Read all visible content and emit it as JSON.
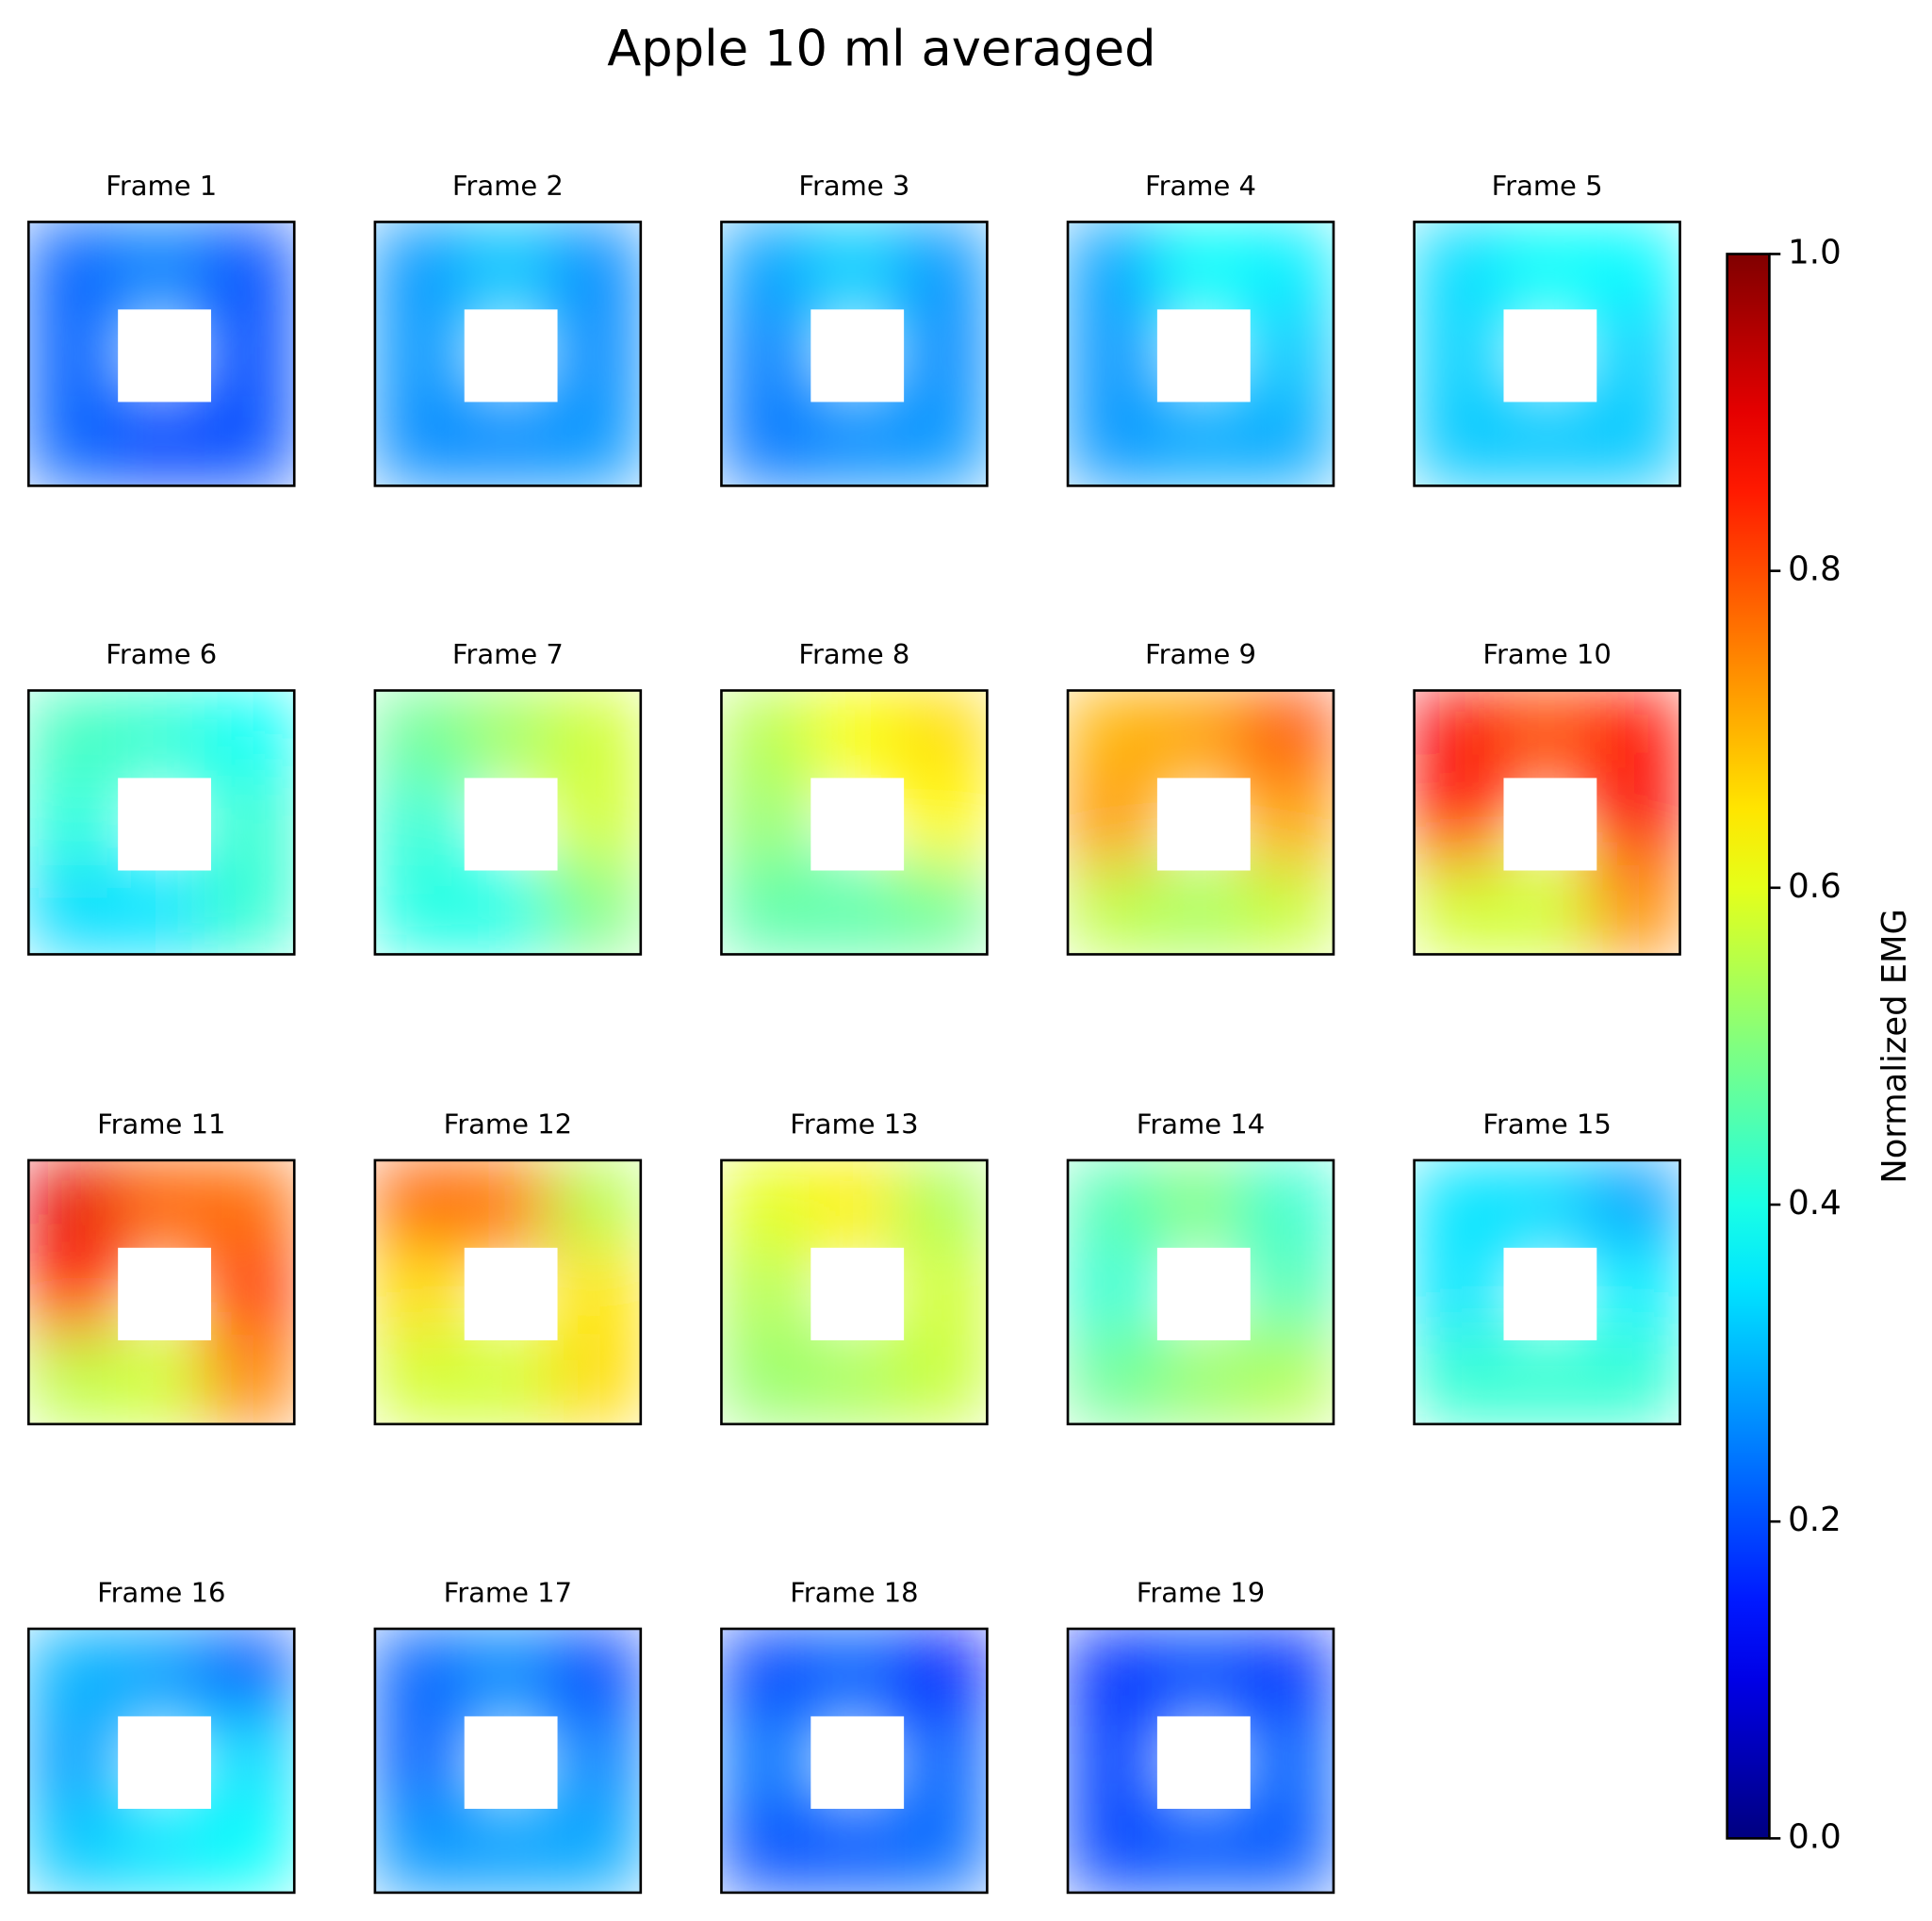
{
  "chart_data": {
    "type": "heatmap",
    "title": "Apple 10 ml averaged",
    "colormap": "jet",
    "clim": [
      0,
      1
    ],
    "cticks": [
      {
        "value": 0,
        "label": "0.0"
      },
      0.2,
      0.4,
      0.6,
      0.8,
      {
        "value": 1,
        "label": "1.0"
      }
    ],
    "colorbar_label": "Normalized EMG",
    "panels": [
      {
        "title": "Frame 1",
        "values": [
          [
            0.22,
            0.25,
            0.2
          ],
          [
            0.22,
            null,
            0.2
          ],
          [
            0.22,
            0.19,
            0.2
          ]
        ]
      },
      {
        "title": "Frame 2",
        "values": [
          [
            0.27,
            0.32,
            0.26
          ],
          [
            0.27,
            null,
            0.26
          ],
          [
            0.26,
            0.26,
            0.27
          ]
        ]
      },
      {
        "title": "Frame 3",
        "values": [
          [
            0.28,
            0.33,
            0.27
          ],
          [
            0.25,
            null,
            0.26
          ],
          [
            0.24,
            0.26,
            0.27
          ]
        ]
      },
      {
        "title": "Frame 4",
        "values": [
          [
            0.28,
            0.38,
            0.36
          ],
          [
            0.27,
            null,
            0.32
          ],
          [
            0.27,
            0.29,
            0.29
          ]
        ]
      },
      {
        "title": "Frame 5",
        "values": [
          [
            0.34,
            0.38,
            0.37
          ],
          [
            0.33,
            null,
            0.33
          ],
          [
            0.32,
            0.32,
            0.32
          ]
        ]
      },
      {
        "title": "Frame 6",
        "values": [
          [
            0.44,
            0.42,
            0.38
          ],
          [
            0.41,
            null,
            0.42
          ],
          [
            0.34,
            0.35,
            0.42
          ]
        ]
      },
      {
        "title": "Frame 7",
        "values": [
          [
            0.48,
            0.53,
            0.58
          ],
          [
            0.42,
            null,
            0.58
          ],
          [
            0.4,
            0.4,
            0.5
          ]
        ]
      },
      {
        "title": "Frame 8",
        "values": [
          [
            0.55,
            0.62,
            0.66
          ],
          [
            0.52,
            null,
            0.63
          ],
          [
            0.46,
            0.46,
            0.48
          ]
        ]
      },
      {
        "title": "Frame 9",
        "values": [
          [
            0.7,
            0.72,
            0.8
          ],
          [
            0.73,
            null,
            0.72
          ],
          [
            0.56,
            0.54,
            0.57
          ]
        ]
      },
      {
        "title": "Frame 10",
        "values": [
          [
            0.88,
            0.8,
            0.86
          ],
          [
            0.85,
            null,
            0.88
          ],
          [
            0.58,
            0.58,
            0.74
          ]
        ]
      },
      {
        "title": "Frame 11",
        "values": [
          [
            0.9,
            0.78,
            0.77
          ],
          [
            0.84,
            null,
            0.82
          ],
          [
            0.56,
            0.58,
            0.75
          ]
        ]
      },
      {
        "title": "Frame 12",
        "values": [
          [
            0.78,
            0.76,
            0.55
          ],
          [
            0.66,
            null,
            0.65
          ],
          [
            0.58,
            0.58,
            0.66
          ]
        ]
      },
      {
        "title": "Frame 13",
        "values": [
          [
            0.6,
            0.64,
            0.54
          ],
          [
            0.55,
            null,
            0.58
          ],
          [
            0.52,
            0.54,
            0.57
          ]
        ]
      },
      {
        "title": "Frame 14",
        "values": [
          [
            0.45,
            0.5,
            0.42
          ],
          [
            0.42,
            null,
            0.45
          ],
          [
            0.48,
            0.52,
            0.55
          ]
        ]
      },
      {
        "title": "Frame 15",
        "values": [
          [
            0.35,
            0.34,
            0.28
          ],
          [
            0.35,
            null,
            0.36
          ],
          [
            0.42,
            0.42,
            0.42
          ]
        ]
      },
      {
        "title": "Frame 16",
        "values": [
          [
            0.3,
            0.28,
            0.21
          ],
          [
            0.28,
            null,
            0.34
          ],
          [
            0.32,
            0.35,
            0.38
          ]
        ]
      },
      {
        "title": "Frame 17",
        "values": [
          [
            0.22,
            0.26,
            0.19
          ],
          [
            0.22,
            null,
            0.25
          ],
          [
            0.27,
            0.28,
            0.29
          ]
        ]
      },
      {
        "title": "Frame 18",
        "values": [
          [
            0.19,
            0.22,
            0.15
          ],
          [
            0.24,
            null,
            0.22
          ],
          [
            0.2,
            0.21,
            0.23
          ]
        ]
      },
      {
        "title": "Frame 19",
        "values": [
          [
            0.17,
            0.2,
            0.17
          ],
          [
            0.19,
            null,
            0.22
          ],
          [
            0.19,
            0.21,
            0.21
          ]
        ]
      }
    ]
  }
}
